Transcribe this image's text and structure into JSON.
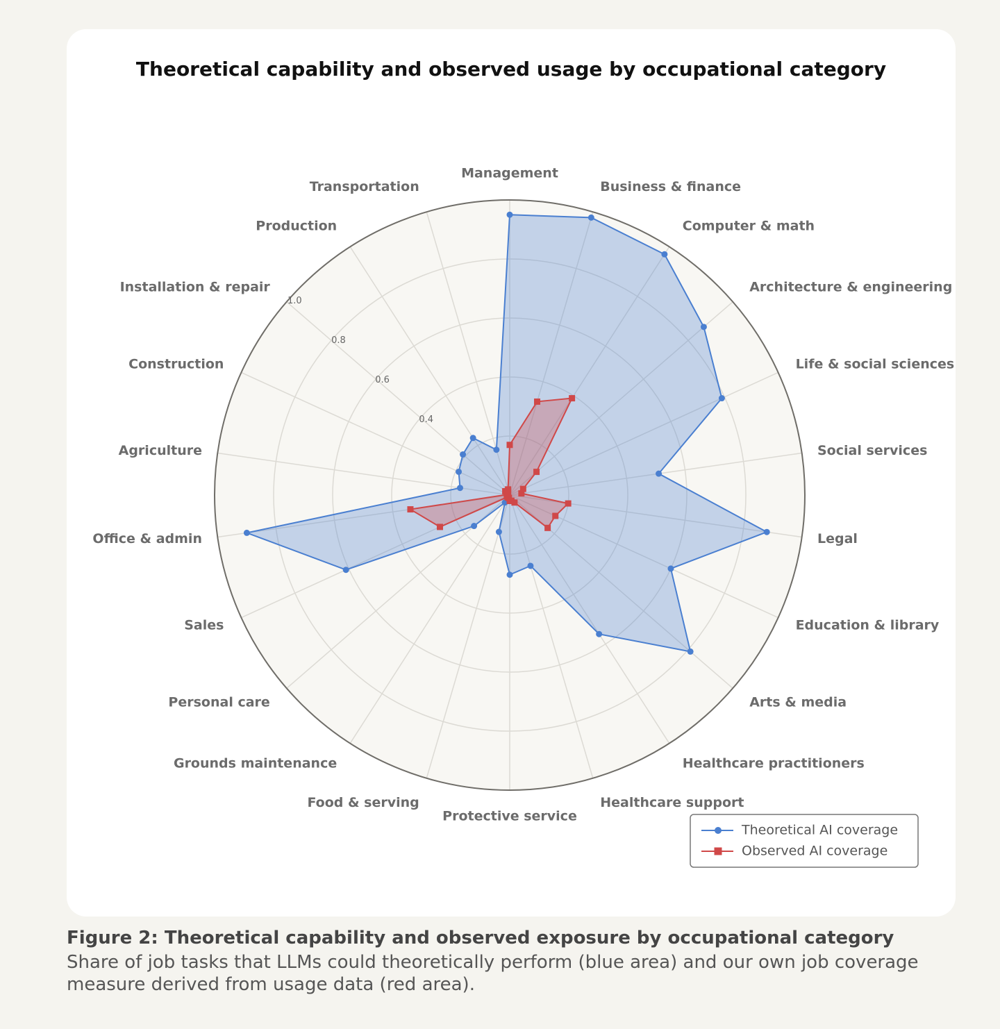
{
  "chart_data": {
    "type": "radar",
    "title": "Theoretical capability and observed usage by occupational category",
    "categories": [
      "Management",
      "Business & finance",
      "Computer & math",
      "Architecture & engineering",
      "Life & social sciences",
      "Social services",
      "Legal",
      "Education & library",
      "Arts & media",
      "Healthcare practitioners",
      "Healthcare support",
      "Protective service",
      "Food & serving",
      "Grounds maintenance",
      "Personal care",
      "Sales",
      "Office & admin",
      "Agriculture",
      "Construction",
      "Installation & repair",
      "Production",
      "Transportation"
    ],
    "series": [
      {
        "name": "Theoretical AI coverage",
        "color": "#4a7fd0",
        "marker": "circle",
        "values": [
          0.95,
          0.98,
          0.97,
          0.87,
          0.79,
          0.51,
          0.88,
          0.6,
          0.81,
          0.56,
          0.25,
          0.27,
          0.13,
          0.03,
          0.16,
          0.61,
          0.9,
          0.17,
          0.19,
          0.21,
          0.23,
          0.16
        ]
      },
      {
        "name": "Observed AI coverage",
        "color": "#d04848",
        "marker": "square",
        "values": [
          0.17,
          0.33,
          0.39,
          0.12,
          0.05,
          0.04,
          0.2,
          0.17,
          0.17,
          0.03,
          0.02,
          0.02,
          0.01,
          0.01,
          0.01,
          0.26,
          0.34,
          0.01,
          0.01,
          0.02,
          0.01,
          0.02
        ]
      }
    ],
    "ylim": [
      0,
      1
    ],
    "yticks": [
      {
        "value": 0.2,
        "label": null
      },
      0.4,
      0.6,
      0.8,
      {
        "value": 1,
        "label": "1.0"
      }
    ],
    "grid": true,
    "legend": "lower-right"
  },
  "caption": {
    "title": "Figure 2: Theoretical capability and observed exposure by occupational category",
    "text": "Share of job tasks that LLMs could theoretically perform (blue area) and our own job coverage measure derived from usage data (red area)."
  }
}
